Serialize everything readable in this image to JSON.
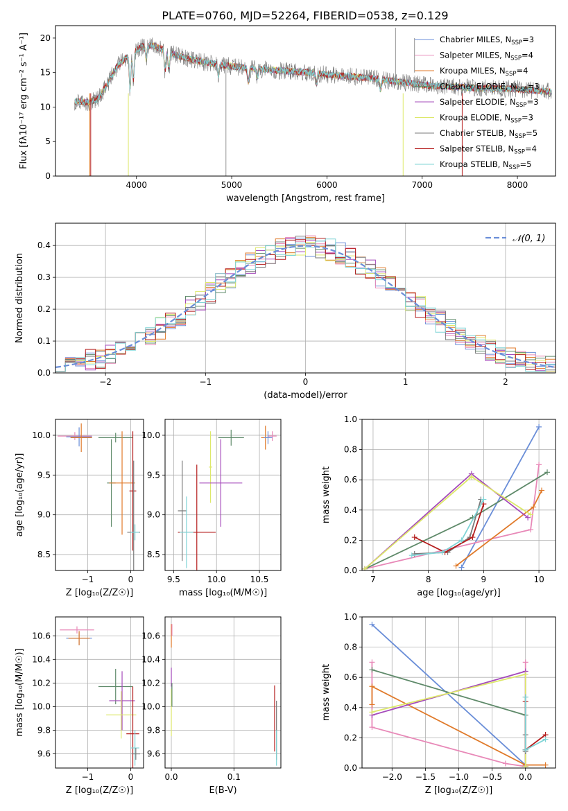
{
  "colors": {
    "cm": "#6a8ed8",
    "sm": "#e889b8",
    "km": "#e07a2a",
    "ce": "#5f8a6a",
    "se": "#a54bbb",
    "ke": "#dde86a",
    "cs": "#7a7a7a",
    "ss": "#b51d1d",
    "ks": "#7fd4d6",
    "grid": "#b0b0b0",
    "normal": "#6a8ed8"
  },
  "figure_title": "PLATE=0760, MJD=52264, FIBERID=0538, z=0.129",
  "chart_data": [
    {
      "id": "spectrum",
      "type": "line",
      "title": "PLATE=0760, MJD=52264, FIBERID=0538, z=0.129",
      "xlabel": "wavelength [Angstrom, rest frame]",
      "ylabel": "Flux [fλ10⁻¹⁷ erg cm⁻² s⁻¹ A⁻¹]",
      "xlim": [
        3150,
        8400
      ],
      "ylim": [
        0,
        21.8
      ],
      "xticks": [
        4000,
        5000,
        6000,
        7000,
        8000
      ],
      "yticks": [
        0,
        5,
        10,
        15,
        20
      ],
      "grid": false,
      "legend_position": "upper right",
      "continuum": {
        "x": [
          3350,
          3500,
          3600,
          3700,
          3800,
          3900,
          4000,
          4100,
          4200,
          4400,
          4600,
          4800,
          5000,
          5200,
          5500,
          5800,
          6000,
          6200,
          6500,
          6800,
          7000,
          7200,
          7400,
          7600,
          7800,
          8000,
          8200,
          8360
        ],
        "y": [
          10.8,
          10.7,
          11.2,
          13.5,
          16.0,
          17.2,
          18.3,
          19.0,
          18.8,
          17.6,
          16.8,
          16.3,
          15.9,
          15.6,
          15.3,
          15.0,
          14.7,
          14.5,
          14.1,
          13.6,
          13.2,
          13.0,
          12.9,
          12.7,
          12.7,
          12.6,
          12.4,
          12.2
        ]
      },
      "series": [
        {
          "name": "Chabrier MILES, N_SSP=3",
          "label_main": "Chabrier MILES, N",
          "label_sub": "SSP",
          "label_end": "=3",
          "color_key": "cm"
        },
        {
          "name": "Salpeter MILES, N_SSP=4",
          "label_main": "Salpeter MILES, N",
          "label_sub": "SSP",
          "label_end": "=4",
          "color_key": "sm"
        },
        {
          "name": "Kroupa MILES, N_SSP=4",
          "label_main": "Kroupa MILES, N",
          "label_sub": "SSP",
          "label_end": "=4",
          "color_key": "km"
        },
        {
          "name": "Chabrier ELODIE, N_SSP=3",
          "label_main": "Chabrier ELODIE, N",
          "label_sub": "SSP",
          "label_end": "=3",
          "color_key": "ce"
        },
        {
          "name": "Salpeter ELODIE, N_SSP=3",
          "label_main": "Salpeter ELODIE, N",
          "label_sub": "SSP",
          "label_end": "=3",
          "color_key": "se"
        },
        {
          "name": "Kroupa ELODIE, N_SSP=3",
          "label_main": "Kroupa ELODIE, N",
          "label_sub": "SSP",
          "label_end": "=3",
          "color_key": "ke"
        },
        {
          "name": "Chabrier STELIB, N_SSP=5",
          "label_main": "Chabrier STELIB, N",
          "label_sub": "SSP",
          "label_end": "=5",
          "color_key": "cs"
        },
        {
          "name": "Salpeter STELIB, N_SSP=4",
          "label_main": "Salpeter STELIB, N",
          "label_sub": "SSP",
          "label_end": "=4",
          "color_key": "ss"
        },
        {
          "name": "Kroupa STELIB, N_SSP=5",
          "label_main": "Kroupa STELIB, N",
          "label_sub": "SSP",
          "label_end": "=5",
          "color_key": "ks"
        }
      ]
    },
    {
      "id": "residuals",
      "type": "step",
      "xlabel": "(data-model)/error",
      "ylabel": "Normed distribution",
      "xlim": [
        -2.5,
        2.5
      ],
      "ylim": [
        0,
        0.47
      ],
      "xticks": [
        -2,
        -1,
        0,
        1,
        2
      ],
      "xticklabels": [
        "−2",
        "−1",
        "0",
        "1",
        "2"
      ],
      "yticks": [
        0.0,
        0.1,
        0.2,
        0.3,
        0.4
      ],
      "yticklabels": [
        "0.0",
        "0.1",
        "0.2",
        "0.3",
        "0.4"
      ],
      "grid": true,
      "legend_position": "upper right",
      "legend_label": "𝒩(0, 1)",
      "bins": 50,
      "gaussian": {
        "mean": 0,
        "sigma": 1
      }
    },
    {
      "id": "age_vs_Z",
      "type": "errorbar",
      "xlabel": "Z [log₁₀(Z/Z☉)]",
      "ylabel": "age  [log₁₀(age/yr)]",
      "xlim": [
        -1.75,
        0.3
      ],
      "ylim": [
        8.3,
        10.2
      ],
      "xticks": [
        -1,
        0
      ],
      "xticklabels": [
        "−1",
        "0"
      ],
      "yticks": [
        8.5,
        9.0,
        9.5,
        10.0
      ],
      "yticklabels": [
        "8.5",
        "9.0",
        "9.5",
        "10.0"
      ],
      "grid": true,
      "points": [
        {
          "s": "sm",
          "x": -1.3,
          "xe": 0.4,
          "y": 9.99,
          "ye": 0.05
        },
        {
          "s": "cm",
          "x": -1.2,
          "xe": 0.3,
          "y": 9.98,
          "ye": 0.12
        },
        {
          "s": "km",
          "x": -1.15,
          "xe": 0.25,
          "y": 9.97,
          "ye": 0.18
        },
        {
          "s": "ce",
          "x": -0.35,
          "xe": 0.4,
          "y": 9.97,
          "ye": 0.06
        },
        {
          "s": "ce",
          "x": -0.45,
          "xe": 0.1,
          "y": 9.4,
          "ye": 0.55
        },
        {
          "s": "km",
          "x": -0.2,
          "xe": 0.3,
          "y": 9.4,
          "ye": 0.65
        },
        {
          "s": "ss",
          "x": 0.05,
          "xe": 0.08,
          "y": 9.3,
          "ye": 0.75
        },
        {
          "s": "cs",
          "x": 0.07,
          "xe": 0.15,
          "y": 8.78,
          "ye": 0.9
        },
        {
          "s": "ks",
          "x": 0.1,
          "xe": 0.1,
          "y": 8.78,
          "ye": 0.1
        }
      ]
    },
    {
      "id": "age_vs_mass",
      "type": "errorbar",
      "xlabel": "mass [log₁₀(M/M☉)]",
      "ylabel": "",
      "xlim": [
        9.4,
        10.75
      ],
      "ylim": [
        8.3,
        10.2
      ],
      "xticks": [
        9.5,
        10.0,
        10.5
      ],
      "xticklabels": [
        "9.5",
        "10.0",
        "10.5"
      ],
      "yticks": [
        8.5,
        9.0,
        9.5,
        10.0
      ],
      "yticklabels": [
        "8.5",
        "9.0",
        "9.5",
        "10.0"
      ],
      "grid": true,
      "points": [
        {
          "s": "ke",
          "x": 9.93,
          "xe": 0.02,
          "y": 9.6,
          "ye": 0.45
        },
        {
          "s": "ce",
          "x": 10.17,
          "xe": 0.15,
          "y": 9.97,
          "ye": 0.1
        },
        {
          "s": "se",
          "x": 10.05,
          "xe": 0.25,
          "y": 9.4,
          "ye": 0.55
        },
        {
          "s": "ss",
          "x": 9.77,
          "xe": 0.22,
          "y": 8.78,
          "ye": 0.85
        },
        {
          "s": "cs",
          "x": 9.6,
          "xe": 0.05,
          "y": 9.05,
          "ye": 0.63
        },
        {
          "s": "ks",
          "x": 9.65,
          "xe": 0.08,
          "y": 8.78,
          "ye": 0.45
        },
        {
          "s": "km",
          "x": 10.57,
          "xe": 0.05,
          "y": 9.97,
          "ye": 0.15
        },
        {
          "s": "sm",
          "x": 10.65,
          "xe": 0.05,
          "y": 9.99,
          "ye": 0.06
        },
        {
          "s": "cm",
          "x": 10.6,
          "xe": 0.05,
          "y": 9.97,
          "ye": 0.08
        }
      ]
    },
    {
      "id": "mass_weight_vs_age",
      "type": "line",
      "xlabel": "age  [log₁₀(age/yr)]",
      "ylabel": "mass weight",
      "xlim": [
        6.8,
        10.3
      ],
      "ylim": [
        0,
        1.0
      ],
      "xticks": [
        7,
        8,
        9,
        10
      ],
      "xticklabels": [
        "7",
        "8",
        "9",
        "10"
      ],
      "yticks": [
        0.0,
        0.2,
        0.4,
        0.6,
        0.8,
        1.0
      ],
      "yticklabels": [
        "0.0",
        "0.2",
        "0.4",
        "0.6",
        "0.8",
        "1.0"
      ],
      "grid": true,
      "series": [
        {
          "s": "cm",
          "x": [
            8.6,
            10.0
          ],
          "y": [
            0.02,
            0.95
          ]
        },
        {
          "s": "sm",
          "x": [
            6.85,
            9.85,
            10.0
          ],
          "y": [
            0.01,
            0.27,
            0.7
          ]
        },
        {
          "s": "km",
          "x": [
            8.5,
            9.9,
            10.05
          ],
          "y": [
            0.03,
            0.42,
            0.53
          ]
        },
        {
          "s": "ce",
          "x": [
            6.85,
            8.8,
            10.15
          ],
          "y": [
            0.01,
            0.35,
            0.65
          ]
        },
        {
          "s": "se",
          "x": [
            6.85,
            8.78,
            9.8
          ],
          "y": [
            0.01,
            0.64,
            0.35
          ]
        },
        {
          "s": "ke",
          "x": [
            6.85,
            8.78,
            9.85
          ],
          "y": [
            0.01,
            0.62,
            0.37
          ]
        },
        {
          "s": "cs",
          "x": [
            7.75,
            8.35,
            8.75,
            8.95
          ],
          "y": [
            0.11,
            0.12,
            0.22,
            0.47
          ]
        },
        {
          "s": "ss",
          "x": [
            7.75,
            8.3,
            8.8,
            9.0
          ],
          "y": [
            0.22,
            0.12,
            0.22,
            0.44
          ]
        },
        {
          "s": "ks",
          "x": [
            7.7,
            8.25,
            8.6,
            9.0
          ],
          "y": [
            0.1,
            0.12,
            0.2,
            0.47
          ]
        }
      ]
    },
    {
      "id": "mass_vs_Z",
      "type": "errorbar",
      "xlabel": "Z [log₁₀(Z/Z☉)]",
      "ylabel": "mass [log₁₀(M/M☉)]",
      "xlim": [
        -1.75,
        0.3
      ],
      "ylim": [
        9.48,
        10.76
      ],
      "xticks": [
        -1,
        0
      ],
      "xticklabels": [
        "−1",
        "0"
      ],
      "yticks": [
        9.6,
        9.8,
        10.0,
        10.2,
        10.4,
        10.6
      ],
      "yticklabels": [
        "9.6",
        "9.8",
        "10.0",
        "10.2",
        "10.4",
        "10.6"
      ],
      "grid": true,
      "points": [
        {
          "s": "sm",
          "x": -1.25,
          "xe": 0.4,
          "y": 10.65,
          "ye": 0.03
        },
        {
          "s": "cm",
          "x": -1.2,
          "xe": 0.3,
          "y": 10.58,
          "ye": 0.06
        },
        {
          "s": "km",
          "x": -1.2,
          "xe": 0.25,
          "y": 10.58,
          "ye": 0.06
        },
        {
          "s": "ce",
          "x": -0.35,
          "xe": 0.4,
          "y": 10.17,
          "ye": 0.15
        },
        {
          "s": "se",
          "x": -0.2,
          "xe": 0.3,
          "y": 10.05,
          "ye": 0.25
        },
        {
          "s": "ke",
          "x": -0.22,
          "xe": 0.35,
          "y": 9.93,
          "ye": 0.2
        },
        {
          "s": "ss",
          "x": 0.05,
          "xe": 0.15,
          "y": 9.77,
          "ye": 0.4
        },
        {
          "s": "ks",
          "x": 0.1,
          "xe": 0.1,
          "y": 9.65,
          "ye": 0.15
        },
        {
          "s": "cs",
          "x": 0.12,
          "xe": 0.1,
          "y": 9.6,
          "ye": 0.05
        }
      ]
    },
    {
      "id": "mass_vs_ebv",
      "type": "errorbar",
      "xlabel": "E(B-V)",
      "ylabel": "",
      "xlim": [
        -0.01,
        0.175
      ],
      "ylim": [
        9.48,
        10.76
      ],
      "xticks": [
        0.0,
        0.1
      ],
      "xticklabels": [
        "0.0",
        "0.1"
      ],
      "yticks": [
        9.6,
        9.8,
        10.0,
        10.2,
        10.4,
        10.6
      ],
      "yticklabels": [
        "9.6",
        "9.8",
        "10.0",
        "10.2",
        "10.4",
        "10.6"
      ],
      "grid": true,
      "points": [
        {
          "s": "km",
          "x": 0.0,
          "xe": 0.0005,
          "y": 10.6,
          "ye": 0.1
        },
        {
          "s": "sm",
          "x": 0.001,
          "xe": 0.0005,
          "y": 10.65,
          "ye": 0.05
        },
        {
          "s": "se",
          "x": 0.0,
          "xe": 0.0005,
          "y": 10.25,
          "ye": 0.08
        },
        {
          "s": "ke",
          "x": 0.0,
          "xe": 0.0005,
          "y": 9.95,
          "ye": 0.2
        },
        {
          "s": "ce",
          "x": 0.001,
          "xe": 0.0005,
          "y": 10.1,
          "ye": 0.1
        },
        {
          "s": "ss",
          "x": 0.165,
          "xe": 0.0005,
          "y": 9.9,
          "ye": 0.28
        },
        {
          "s": "cs",
          "x": 0.168,
          "xe": 0.0005,
          "y": 9.8,
          "ye": 0.25
        },
        {
          "s": "ks",
          "x": 0.168,
          "xe": 0.0005,
          "y": 9.65,
          "ye": 0.15
        }
      ]
    },
    {
      "id": "mass_weight_vs_Z",
      "type": "line",
      "xlabel": "Z [log₁₀(Z/Z☉)]",
      "ylabel": "mass weight",
      "xlim": [
        -2.45,
        0.45
      ],
      "ylim": [
        0,
        1.0
      ],
      "xticks": [
        -2.0,
        -1.5,
        -1.0,
        -0.5,
        0.0
      ],
      "xticklabels": [
        "−2.0",
        "−1.5",
        "−1.0",
        "−0.5",
        "0.0"
      ],
      "yticks": [
        0.0,
        0.2,
        0.4,
        0.6,
        0.8,
        1.0
      ],
      "yticklabels": [
        "0.0",
        "0.2",
        "0.4",
        "0.6",
        "0.8",
        "1.0"
      ],
      "grid": true,
      "series": [
        {
          "s": "cm",
          "x": [
            -2.3,
            0.0
          ],
          "y": [
            0.95,
            0.02
          ]
        },
        {
          "s": "sm",
          "x": [
            -2.3,
            -2.3,
            -2.3,
            -0.3,
            0.0,
            0.0
          ],
          "y": [
            0.7,
            0.42,
            0.27,
            0.03,
            0.01,
            0.7
          ]
        },
        {
          "s": "km",
          "x": [
            -2.3,
            -2.3,
            0.0,
            0.3
          ],
          "y": [
            0.42,
            0.54,
            0.02,
            0.02
          ]
        },
        {
          "s": "ce",
          "x": [
            -2.3,
            0.0,
            0.0
          ],
          "y": [
            0.65,
            0.35,
            0.01
          ]
        },
        {
          "s": "se",
          "x": [
            -2.3,
            0.0,
            0.0
          ],
          "y": [
            0.35,
            0.64,
            0.01
          ]
        },
        {
          "s": "ke",
          "x": [
            -2.3,
            0.0,
            0.0
          ],
          "y": [
            0.37,
            0.62,
            0.01
          ]
        },
        {
          "s": "cs",
          "x": [
            0.0,
            0.0,
            0.0,
            0.0
          ],
          "y": [
            0.11,
            0.12,
            0.22,
            0.47
          ]
        },
        {
          "s": "ss",
          "x": [
            0.0,
            0.0,
            0.3
          ],
          "y": [
            0.44,
            0.12,
            0.22
          ]
        },
        {
          "s": "ks",
          "x": [
            0.0,
            0.0,
            0.3
          ],
          "y": [
            0.47,
            0.12,
            0.19
          ]
        }
      ]
    }
  ]
}
